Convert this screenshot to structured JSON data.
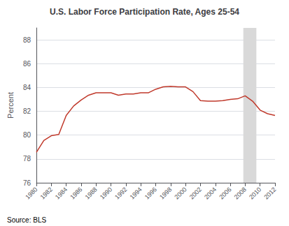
{
  "chart_data": {
    "type": "line",
    "title": "U.S. Labor Force Participation Rate, Ages 25-54",
    "ylabel": "Percent",
    "annotation": "Source: BLS",
    "x": [
      1980,
      1981,
      1982,
      1983,
      1984,
      1985,
      1986,
      1987,
      1988,
      1989,
      1990,
      1991,
      1992,
      1993,
      1994,
      1995,
      1996,
      1997,
      1998,
      1999,
      2000,
      2001,
      2002,
      2003,
      2004,
      2005,
      2006,
      2007,
      2008,
      2009,
      2010,
      2011,
      2012
    ],
    "values": [
      78.55,
      79.55,
      79.95,
      80.05,
      81.65,
      82.45,
      82.95,
      83.35,
      83.55,
      83.55,
      83.55,
      83.35,
      83.45,
      83.45,
      83.55,
      83.55,
      83.85,
      84.05,
      84.1,
      84.05,
      84.05,
      83.65,
      82.9,
      82.85,
      82.85,
      82.9,
      83.0,
      83.05,
      83.3,
      82.85,
      82.1,
      81.8,
      81.65
    ],
    "color": "#c0392b",
    "xlim": [
      1980,
      2012
    ],
    "xticks": [
      1980,
      1982,
      1984,
      1986,
      1988,
      1990,
      1992,
      1994,
      1996,
      1998,
      2000,
      2002,
      2004,
      2006,
      2008,
      2010,
      2012
    ],
    "ylim": [
      76,
      89
    ],
    "yticks": [
      76,
      78,
      80,
      82,
      84,
      86,
      88
    ],
    "grid": "y",
    "recession": {
      "start": 2007.75,
      "end": 2009.5,
      "color": "#d9d9d9"
    }
  }
}
